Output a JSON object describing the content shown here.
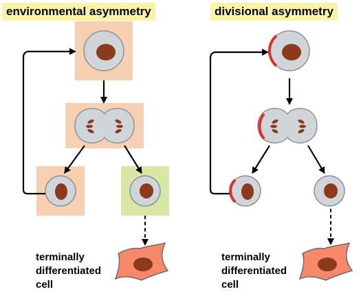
{
  "panels": {
    "left": {
      "title": "environmental asymmetry",
      "caption": [
        "terminally",
        "differentiated",
        "cell"
      ]
    },
    "right": {
      "title": "divisional asymmetry",
      "caption": [
        "terminally",
        "differentiated",
        "cell"
      ]
    }
  },
  "colors": {
    "title_highlight": "#fdf3a6",
    "niche_box": "#f6d0b0",
    "alt_niche_box": "#d8e6a6",
    "cell_body": "#d0d5d9",
    "cell_outline": "#8c9296",
    "nucleus": "#8b3a1c",
    "polarity_crescent": "#d9312b",
    "differentiated_cell": "#f7896a"
  }
}
